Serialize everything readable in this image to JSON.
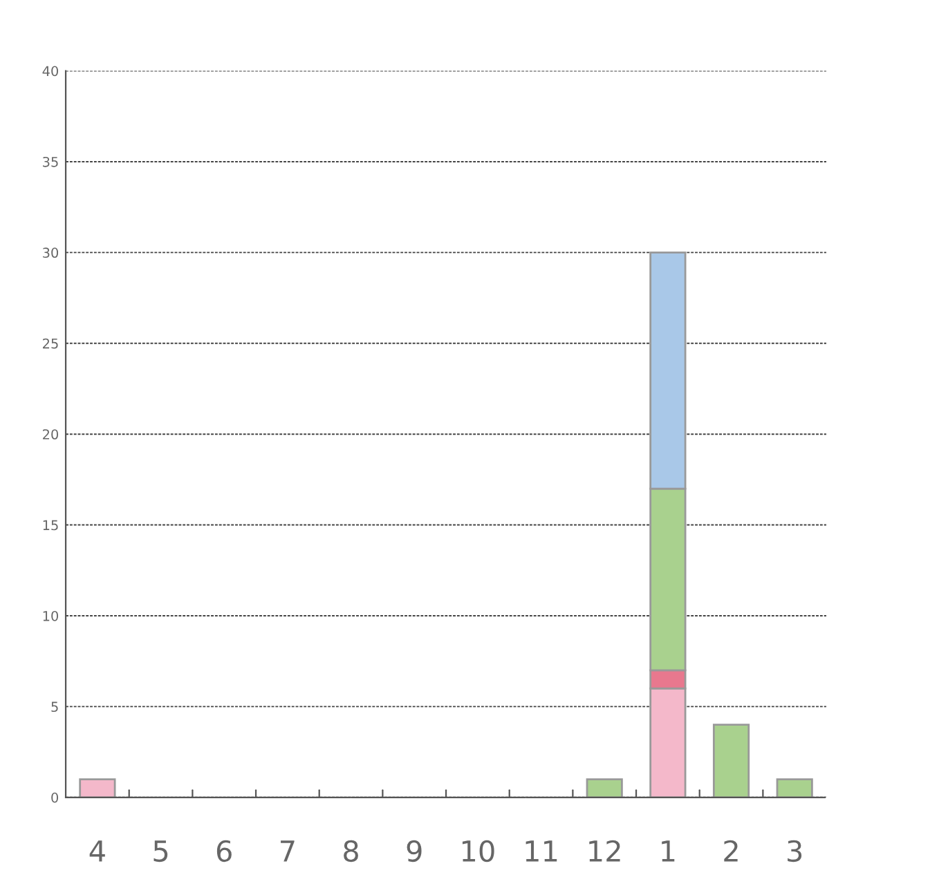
{
  "chart_data": {
    "type": "bar",
    "stacked": true,
    "categories": [
      "4",
      "5",
      "6",
      "7",
      "8",
      "9",
      "10",
      "11",
      "12",
      "1",
      "2",
      "3"
    ],
    "series": [
      {
        "color": "#f4b8ca",
        "values": [
          1,
          null,
          null,
          null,
          null,
          null,
          null,
          null,
          null,
          6,
          null,
          null
        ]
      },
      {
        "color": "#e8788e",
        "values": [
          null,
          null,
          null,
          null,
          null,
          null,
          null,
          null,
          null,
          1,
          null,
          null
        ]
      },
      {
        "color": "#a9d18e",
        "values": [
          null,
          null,
          null,
          null,
          null,
          null,
          null,
          null,
          1,
          10,
          4,
          1
        ]
      },
      {
        "color": "#a9c8e8",
        "values": [
          null,
          null,
          null,
          null,
          null,
          null,
          null,
          null,
          null,
          13,
          null,
          null
        ]
      }
    ],
    "ylim": [
      0,
      40
    ],
    "yticks": [
      0,
      5,
      10,
      15,
      20,
      25,
      30,
      35,
      40
    ],
    "grid": "y",
    "legend": false
  }
}
